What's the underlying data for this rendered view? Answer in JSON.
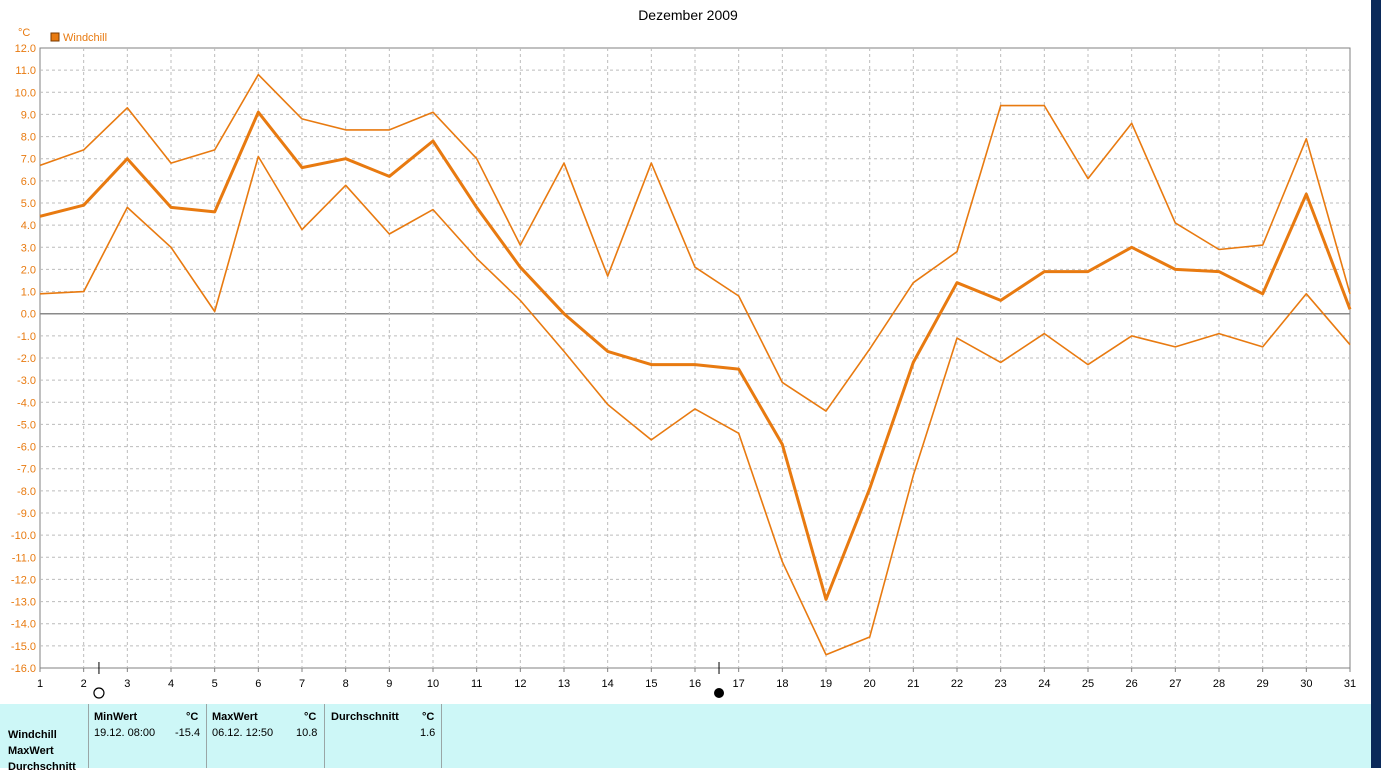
{
  "chart_data": {
    "type": "line",
    "title": "Dezember 2009",
    "unit": "°C",
    "legend": [
      {
        "name": "Windchill",
        "color": "#e87a10"
      }
    ],
    "ylim": [
      -16,
      12
    ],
    "yticks": [
      "12.0",
      "11.0",
      "10.0",
      "9.0",
      "8.0",
      "7.0",
      "6.0",
      "5.0",
      "4.0",
      "3.0",
      "2.0",
      "1.0",
      "0.0",
      "-1.0",
      "-2.0",
      "-3.0",
      "-4.0",
      "-5.0",
      "-6.0",
      "-7.0",
      "-8.0",
      "-9.0",
      "-10.0",
      "-11.0",
      "-12.0",
      "-13.0",
      "-14.0",
      "-15.0",
      "-16.0"
    ],
    "x": [
      "1",
      "2",
      "3",
      "4",
      "5",
      "6",
      "7",
      "8",
      "9",
      "10",
      "11",
      "12",
      "13",
      "14",
      "15",
      "16",
      "17",
      "18",
      "19",
      "20",
      "21",
      "22",
      "23",
      "24",
      "25",
      "26",
      "27",
      "28",
      "29",
      "30",
      "31"
    ],
    "grid": true,
    "series": [
      {
        "role": "max",
        "width": 1.6,
        "values": [
          6.7,
          7.4,
          9.3,
          6.8,
          7.4,
          10.8,
          8.8,
          8.3,
          8.3,
          9.1,
          7.0,
          3.1,
          6.8,
          1.7,
          6.8,
          2.1,
          0.8,
          -3.1,
          -4.4,
          -1.6,
          1.4,
          2.8,
          9.4,
          9.4,
          6.1,
          8.6,
          4.1,
          2.9,
          3.1,
          7.9,
          0.9
        ]
      },
      {
        "role": "avg",
        "width": 3,
        "values": [
          4.4,
          4.9,
          7.0,
          4.8,
          4.6,
          9.1,
          6.6,
          7.0,
          6.2,
          7.8,
          4.8,
          2.1,
          0.0,
          -1.7,
          -2.3,
          -2.3,
          -2.5,
          -5.9,
          -12.9,
          -7.9,
          -2.2,
          1.4,
          0.6,
          1.9,
          1.9,
          3.0,
          2.0,
          1.9,
          0.9,
          5.4,
          0.2
        ]
      },
      {
        "role": "min",
        "width": 1.6,
        "values": [
          0.9,
          1.0,
          4.8,
          3.0,
          0.1,
          7.1,
          3.8,
          5.8,
          3.6,
          4.7,
          2.5,
          0.6,
          -1.7,
          -4.1,
          -5.7,
          -4.3,
          -5.4,
          -11.2,
          -15.4,
          -14.6,
          -7.3,
          -1.1,
          -2.2,
          -0.9,
          -2.3,
          -1.0,
          -1.5,
          -0.9,
          -1.5,
          0.9,
          -1.4
        ]
      }
    ],
    "markers": [
      {
        "type": "hollow-circle",
        "x": "2.35"
      },
      {
        "type": "filled-circle",
        "x": "16.55"
      }
    ]
  },
  "stats": {
    "row_labels": [
      "Windchill",
      "MaxWert",
      "Durchschnitt"
    ],
    "min": {
      "header": "MinWert",
      "unit": "°C",
      "datetime": "19.12.  08:00",
      "value": "-15.4"
    },
    "max": {
      "header": "MaxWert",
      "unit": "°C",
      "datetime": "06.12.  12:50",
      "value": "10.8"
    },
    "avg": {
      "header": "Durchschnitt",
      "unit": "°C",
      "value": "1.6"
    }
  }
}
